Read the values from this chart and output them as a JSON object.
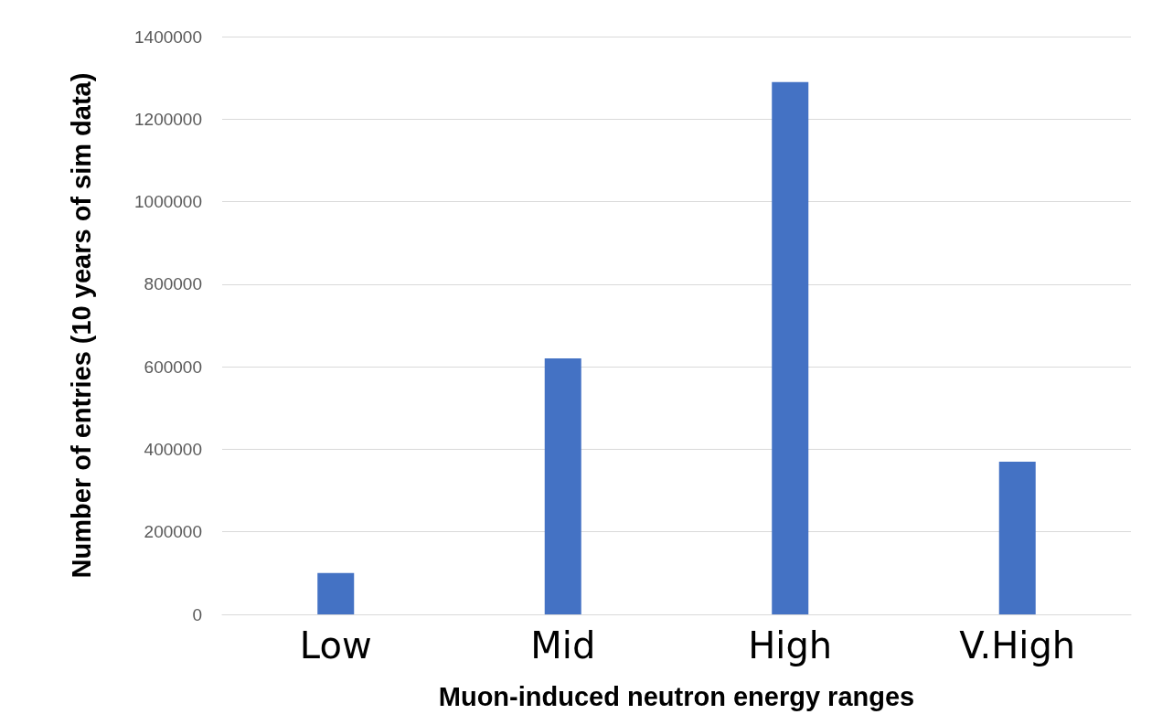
{
  "chart_data": {
    "type": "bar",
    "xlabel": "Muon-induced neutron energy ranges",
    "ylabel": "Number of entries (10 years of sim data)",
    "categories": [
      "Low",
      "Mid",
      "High",
      "V.High"
    ],
    "values": [
      100000,
      620000,
      1290000,
      370000
    ],
    "color": "#4472c4",
    "ylim": [
      0,
      1400000
    ],
    "yticks": [
      0,
      200000,
      400000,
      600000,
      800000,
      1000000,
      1200000,
      1400000
    ],
    "grid": "y"
  }
}
